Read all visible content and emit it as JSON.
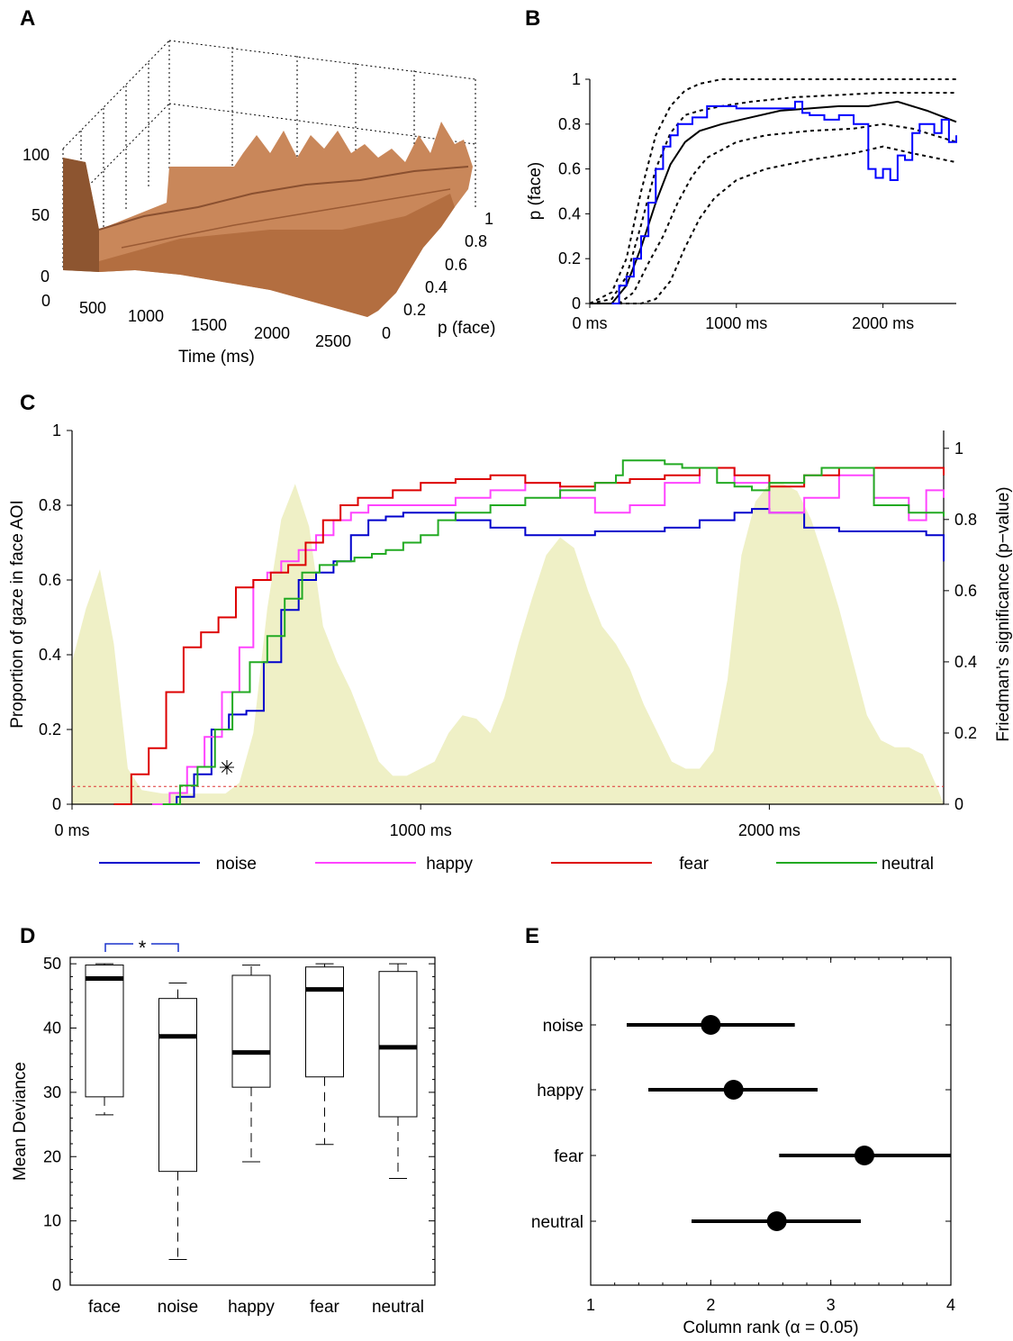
{
  "panels": {
    "A": {
      "label": "A",
      "chart_data": {
        "type": "area",
        "title": "",
        "xlabel": "Time (ms)",
        "ylabel": "p (face)",
        "zticks": [
          "0",
          "50",
          "100"
        ],
        "xticks": [
          "0",
          "500",
          "1000",
          "1500",
          "2000",
          "2500"
        ],
        "yticks": [
          "0",
          "0.2",
          "0.4",
          "0.6",
          "0.8",
          "1"
        ],
        "xlim": [
          0,
          2500
        ],
        "ylim": [
          0,
          1
        ],
        "zlim": [
          0,
          100
        ],
        "surface_color": "#c9875a"
      }
    },
    "B": {
      "label": "B",
      "chart_data": {
        "type": "line",
        "ylabel": "p (face)",
        "xticks": [
          "0 ms",
          "1000 ms",
          "2000 ms"
        ],
        "yticks": [
          "0",
          "0.2",
          "0.4",
          "0.6",
          "0.8",
          "1"
        ],
        "xlim": [
          0,
          2500
        ],
        "ylim": [
          0,
          1
        ],
        "series": [
          {
            "style": "solid",
            "color": "#000000",
            "x": [
              0,
              150,
              250,
              350,
              450,
              550,
              650,
              750,
              900,
              1100,
              1300,
              1500,
              1700,
              1900,
              2100,
              2300,
              2500
            ],
            "y": [
              0,
              0,
              0.08,
              0.25,
              0.45,
              0.62,
              0.72,
              0.77,
              0.8,
              0.83,
              0.86,
              0.87,
              0.88,
              0.88,
              0.9,
              0.86,
              0.81
            ]
          },
          {
            "style": "dotted",
            "color": "#000000",
            "x": [
              0,
              150,
              250,
              350,
              450,
              550,
              650,
              750,
              900,
              1100,
              1400,
              1700,
              2000,
              2300,
              2500
            ],
            "y": [
              0,
              0.05,
              0.2,
              0.5,
              0.75,
              0.88,
              0.95,
              0.98,
              1,
              1,
              1,
              1,
              1,
              1,
              1
            ]
          },
          {
            "style": "dotted",
            "color": "#000000",
            "x": [
              0,
              150,
              250,
              350,
              450,
              550,
              650,
              750,
              900,
              1100,
              1400,
              1700,
              2000,
              2300,
              2500
            ],
            "y": [
              0,
              0.02,
              0.12,
              0.35,
              0.6,
              0.76,
              0.84,
              0.86,
              0.88,
              0.9,
              0.92,
              0.93,
              0.94,
              0.94,
              0.94
            ]
          },
          {
            "style": "dotted",
            "color": "#000000",
            "x": [
              0,
              200,
              300,
              400,
              500,
              600,
              700,
              800,
              1000,
              1200,
              1500,
              1800,
              2000,
              2200,
              2500
            ],
            "y": [
              0,
              0,
              0.05,
              0.18,
              0.3,
              0.45,
              0.57,
              0.65,
              0.72,
              0.75,
              0.77,
              0.78,
              0.8,
              0.78,
              0.72
            ]
          },
          {
            "style": "dotted",
            "color": "#000000",
            "x": [
              0,
              250,
              350,
              450,
              550,
              650,
              750,
              850,
              1000,
              1200,
              1500,
              1800,
              2000,
              2200,
              2500
            ],
            "y": [
              0,
              0,
              0,
              0.02,
              0.1,
              0.25,
              0.38,
              0.47,
              0.55,
              0.6,
              0.64,
              0.67,
              0.7,
              0.67,
              0.63
            ]
          },
          {
            "style": "solid",
            "color": "#0000ff",
            "x": [
              150,
              200,
              250,
              300,
              350,
              400,
              450,
              500,
              550,
              600,
              700,
              800,
              900,
              1000,
              1200,
              1400,
              1450,
              1500,
              1600,
              1700,
              1800,
              1850,
              1900,
              1950,
              2000,
              2050,
              2100,
              2150,
              2200,
              2250,
              2300,
              2350,
              2400,
              2450,
              2500
            ],
            "y": [
              0,
              0.08,
              0.12,
              0.2,
              0.3,
              0.45,
              0.6,
              0.7,
              0.75,
              0.8,
              0.83,
              0.88,
              0.88,
              0.87,
              0.87,
              0.9,
              0.85,
              0.84,
              0.82,
              0.84,
              0.8,
              0.8,
              0.6,
              0.56,
              0.6,
              0.55,
              0.66,
              0.64,
              0.76,
              0.8,
              0.8,
              0.76,
              0.82,
              0.72,
              0.75
            ]
          }
        ]
      }
    },
    "C": {
      "label": "C",
      "chart_data": {
        "type": "line",
        "ylabel": "Proportion of gaze in face AOI",
        "y2label": "Friedman’s significance (p−value)",
        "xticks": [
          "0 ms",
          "1000 ms",
          "2000 ms"
        ],
        "yticks": [
          "0",
          "0.2",
          "0.4",
          "0.6",
          "0.8",
          "1"
        ],
        "y2ticks": [
          "0",
          "0.2",
          "0.4",
          "0.6",
          "0.8",
          "1"
        ],
        "xlim": [
          0,
          2500
        ],
        "ylim": [
          0,
          1
        ],
        "y2lim": [
          0,
          1.05
        ],
        "threshold": 0.05,
        "annotation": "✳",
        "significance_area": {
          "color": "#eff0c6",
          "x": [
            0,
            40,
            80,
            120,
            160,
            200,
            260,
            340,
            400,
            440,
            480,
            520,
            560,
            600,
            640,
            680,
            720,
            760,
            800,
            840,
            880,
            920,
            960,
            1000,
            1040,
            1080,
            1120,
            1160,
            1200,
            1240,
            1280,
            1320,
            1360,
            1400,
            1440,
            1480,
            1520,
            1560,
            1600,
            1640,
            1680,
            1720,
            1760,
            1800,
            1840,
            1880,
            1920,
            1960,
            2000,
            2040,
            2080,
            2120,
            2160,
            2200,
            2240,
            2280,
            2320,
            2360,
            2400,
            2440,
            2480,
            2500
          ],
          "y": [
            0.4,
            0.55,
            0.66,
            0.45,
            0.1,
            0.04,
            0.03,
            0.03,
            0.03,
            0.03,
            0.06,
            0.2,
            0.55,
            0.8,
            0.9,
            0.78,
            0.5,
            0.4,
            0.32,
            0.22,
            0.12,
            0.08,
            0.08,
            0.1,
            0.12,
            0.2,
            0.25,
            0.24,
            0.2,
            0.3,
            0.45,
            0.58,
            0.7,
            0.75,
            0.72,
            0.6,
            0.5,
            0.45,
            0.38,
            0.28,
            0.2,
            0.12,
            0.1,
            0.1,
            0.15,
            0.35,
            0.7,
            0.85,
            0.9,
            0.9,
            0.88,
            0.8,
            0.68,
            0.55,
            0.4,
            0.25,
            0.18,
            0.16,
            0.16,
            0.14,
            0.05,
            0.0
          ]
        },
        "series": [
          {
            "name": "noise",
            "color": "#0000cc",
            "x": [
              250,
              300,
              350,
              400,
              450,
              500,
              550,
              600,
              650,
              700,
              750,
              800,
              850,
              900,
              950,
              1000,
              1100,
              1200,
              1300,
              1400,
              1500,
              1600,
              1700,
              1800,
              1900,
              1950,
              2000,
              2100,
              2200,
              2300,
              2400,
              2450,
              2500
            ],
            "y": [
              0,
              0.02,
              0.08,
              0.2,
              0.24,
              0.25,
              0.38,
              0.52,
              0.6,
              0.62,
              0.65,
              0.72,
              0.76,
              0.77,
              0.78,
              0.78,
              0.76,
              0.74,
              0.72,
              0.72,
              0.73,
              0.73,
              0.74,
              0.76,
              0.78,
              0.79,
              0.78,
              0.74,
              0.73,
              0.73,
              0.73,
              0.72,
              0.65
            ]
          },
          {
            "name": "happy",
            "color": "#ff44ff",
            "x": [
              230,
              280,
              330,
              380,
              430,
              480,
              520,
              560,
              600,
              650,
              700,
              750,
              800,
              850,
              900,
              1000,
              1100,
              1200,
              1300,
              1400,
              1500,
              1600,
              1700,
              1800,
              1900,
              2000,
              2100,
              2200,
              2300,
              2400,
              2450,
              2500
            ],
            "y": [
              0,
              0.03,
              0.1,
              0.18,
              0.3,
              0.42,
              0.6,
              0.62,
              0.65,
              0.68,
              0.72,
              0.76,
              0.78,
              0.8,
              0.8,
              0.8,
              0.82,
              0.84,
              0.86,
              0.82,
              0.78,
              0.8,
              0.86,
              0.9,
              0.86,
              0.78,
              0.82,
              0.88,
              0.82,
              0.76,
              0.84,
              0.82
            ]
          },
          {
            "name": "fear",
            "color": "#dd0000",
            "x": [
              120,
              170,
              220,
              270,
              320,
              370,
              420,
              470,
              520,
              570,
              620,
              670,
              720,
              770,
              820,
              870,
              920,
              1000,
              1100,
              1200,
              1300,
              1400,
              1500,
              1600,
              1700,
              1800,
              1900,
              2000,
              2100,
              2200,
              2300,
              2400,
              2450,
              2500
            ],
            "y": [
              0,
              0.08,
              0.15,
              0.3,
              0.42,
              0.46,
              0.5,
              0.58,
              0.6,
              0.62,
              0.64,
              0.7,
              0.76,
              0.8,
              0.82,
              0.82,
              0.84,
              0.86,
              0.87,
              0.88,
              0.86,
              0.85,
              0.86,
              0.87,
              0.88,
              0.9,
              0.88,
              0.85,
              0.88,
              0.9,
              0.9,
              0.9,
              0.9,
              0.88
            ]
          },
          {
            "name": "neutral",
            "color": "#22aa22",
            "x": [
              260,
              310,
              360,
              410,
              460,
              510,
              560,
              610,
              660,
              710,
              760,
              810,
              860,
              900,
              950,
              1000,
              1050,
              1100,
              1200,
              1300,
              1400,
              1500,
              1560,
              1580,
              1650,
              1700,
              1750,
              1800,
              1850,
              1900,
              1950,
              2000,
              2100,
              2150,
              2200,
              2300,
              2400,
              2500
            ],
            "y": [
              0,
              0.05,
              0.1,
              0.2,
              0.3,
              0.38,
              0.45,
              0.55,
              0.62,
              0.64,
              0.65,
              0.66,
              0.67,
              0.68,
              0.7,
              0.72,
              0.76,
              0.78,
              0.8,
              0.82,
              0.84,
              0.86,
              0.88,
              0.92,
              0.92,
              0.91,
              0.9,
              0.9,
              0.86,
              0.85,
              0.84,
              0.86,
              0.88,
              0.9,
              0.9,
              0.8,
              0.78,
              0.77
            ]
          }
        ],
        "legend_placement": "bottom"
      }
    },
    "D": {
      "label": "D",
      "chart_data": {
        "type": "box",
        "ylabel": "Mean Deviance",
        "categories": [
          "face",
          "noise",
          "happy",
          "fear",
          "neutral"
        ],
        "yticks": [
          "0",
          "10",
          "20",
          "30",
          "40",
          "50"
        ],
        "ylim": [
          0,
          51
        ],
        "boxes": [
          {
            "min": 26.5,
            "q1": 29.3,
            "median": 47.7,
            "q3": 49.8,
            "max": 50
          },
          {
            "min": 4,
            "q1": 17.7,
            "median": 38.7,
            "q3": 44.6,
            "max": 47
          },
          {
            "min": 19.2,
            "q1": 30.8,
            "median": 36.2,
            "q3": 48.2,
            "max": 49.8
          },
          {
            "min": 21.9,
            "q1": 32.4,
            "median": 46,
            "q3": 49.5,
            "max": 50
          },
          {
            "min": 16.6,
            "q1": 26.2,
            "median": 37,
            "q3": 48.8,
            "max": 50
          }
        ],
        "significance_bracket": {
          "from": "face",
          "to": "noise",
          "label": "*",
          "color": "#1a33cc"
        }
      }
    },
    "E": {
      "label": "E",
      "chart_data": {
        "type": "scatter",
        "xlabel": "Column rank (α = 0.05)",
        "categories": [
          "noise",
          "happy",
          "fear",
          "neutral"
        ],
        "xticks": [
          "1",
          "2",
          "3",
          "4"
        ],
        "xlim": [
          1,
          4
        ],
        "points": [
          {
            "name": "noise",
            "value": 2.0,
            "low": 1.3,
            "high": 2.7
          },
          {
            "name": "happy",
            "value": 2.19,
            "low": 1.48,
            "high": 2.89
          },
          {
            "name": "fear",
            "value": 3.28,
            "low": 2.57,
            "high": 4.0
          },
          {
            "name": "neutral",
            "value": 2.55,
            "low": 1.84,
            "high": 3.25
          }
        ]
      }
    }
  }
}
